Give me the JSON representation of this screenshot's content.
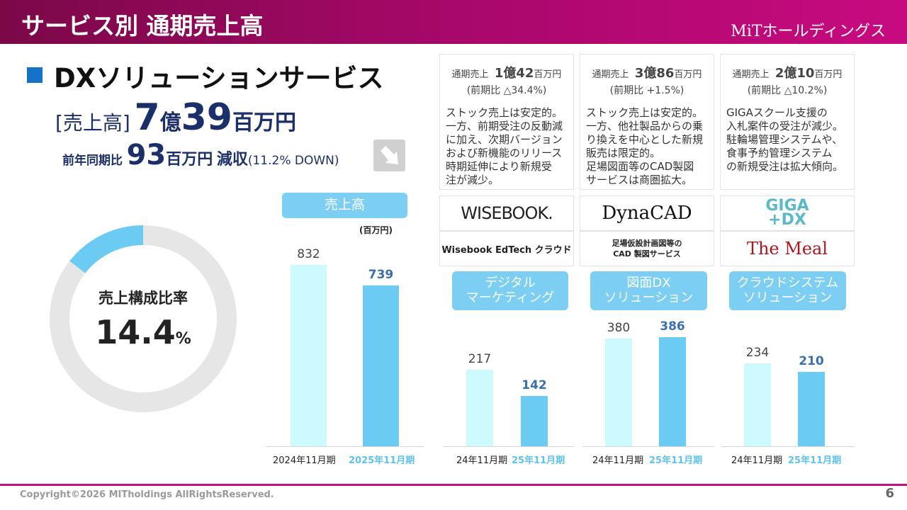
{
  "header": {
    "title": "サービス別 通期売上高",
    "logo": "MiTホールディングス"
  },
  "section": {
    "title": "DXソリューションサービス",
    "sales_label": "[売上高]",
    "sales_oku": "7",
    "oku": "億",
    "sales_man": "39",
    "unit": "百万円",
    "yoy_label": "前年同期比",
    "yoy_value": "93",
    "yoy_unit": "百万円",
    "yoy_dir": "減収",
    "yoy_pct": "(11.2% DOWN)",
    "arrow_icon": "arrow-down-right-icon"
  },
  "colors": {
    "header": "#a8086a",
    "accent_blue": "#7ccff3",
    "bar_prev": "#ccfaff",
    "bar_curr": "#6ccbf2",
    "navy": "#1b2f6b"
  },
  "chart_data": [
    {
      "type": "pie",
      "style": "donut",
      "label": "売上構成比率",
      "value_text": "14.4",
      "value_unit": "%",
      "slices": [
        {
          "value": 14.4,
          "color": "#6ccbf2"
        },
        {
          "value": 85.6,
          "color": "#e6e6e6"
        }
      ]
    },
    {
      "type": "bar",
      "title": "売上高",
      "unit": "(百万円)",
      "categories": [
        "2024年11月期",
        "2025年11月期"
      ],
      "values": [
        832,
        739
      ],
      "value_labels": [
        "832",
        "739"
      ]
    },
    {
      "type": "bar",
      "title": "デジタル\nマーケティング",
      "categories": [
        "24年11月期",
        "25年11月期"
      ],
      "values": [
        217,
        142
      ],
      "value_labels": [
        "217",
        "142"
      ]
    },
    {
      "type": "bar",
      "title": "図面DX\nソリューション",
      "categories": [
        "24年11月期",
        "25年11月期"
      ],
      "values": [
        380,
        386
      ],
      "value_labels": [
        "380",
        "386"
      ]
    },
    {
      "type": "bar",
      "title": "クラウドシステム\nソリューション",
      "categories": [
        "24年11月期",
        "25年11月期"
      ],
      "values": [
        234,
        210
      ],
      "value_labels": [
        "234",
        "210"
      ]
    }
  ],
  "cards": [
    {
      "head_label": "通期売上",
      "head_oku": "1億",
      "head_man": "42",
      "head_unit": "百万円",
      "head_yoy": "(前期比 △34.4%)",
      "body": "ストック売上は安定的。\n一方、前期受注の反動減\nに加え、次期バージョン\nおよび新機能のリリース\n時期延伸により新規受\n注が減少。",
      "logo": "WISEBOOK.",
      "product": "Wisebook EdTech クラウド"
    },
    {
      "head_label": "通期売上",
      "head_oku": "3億",
      "head_man": "86",
      "head_unit": "百万円",
      "head_yoy": "(前期比 +1.5%)",
      "body": "ストック売上は安定的。\n一方、他社製品からの乗\nり換えを中心とした新規\n販売は限定的。\n足場図面等のCAD製図\nサービスは商圏拡大。",
      "logo": "DynaCAD",
      "product": "足場仮設計画図等の\nCAD 製図サービス"
    },
    {
      "head_label": "通期売上",
      "head_oku": "2億",
      "head_man": "10",
      "head_unit": "百万円",
      "head_yoy": "(前期比 △10.2%)",
      "body": "GIGAスクール支援の\n入札案件の受注が減少。\n駐輪場管理システムや、\n食事予約管理システム\nの新規受注は拡大傾向。",
      "logo": "GIGA\n+DX",
      "product": "The Meal"
    }
  ],
  "footer": {
    "copyright": "Copyright©2026 MITholdings AllRightsReserved.",
    "page": "6"
  }
}
